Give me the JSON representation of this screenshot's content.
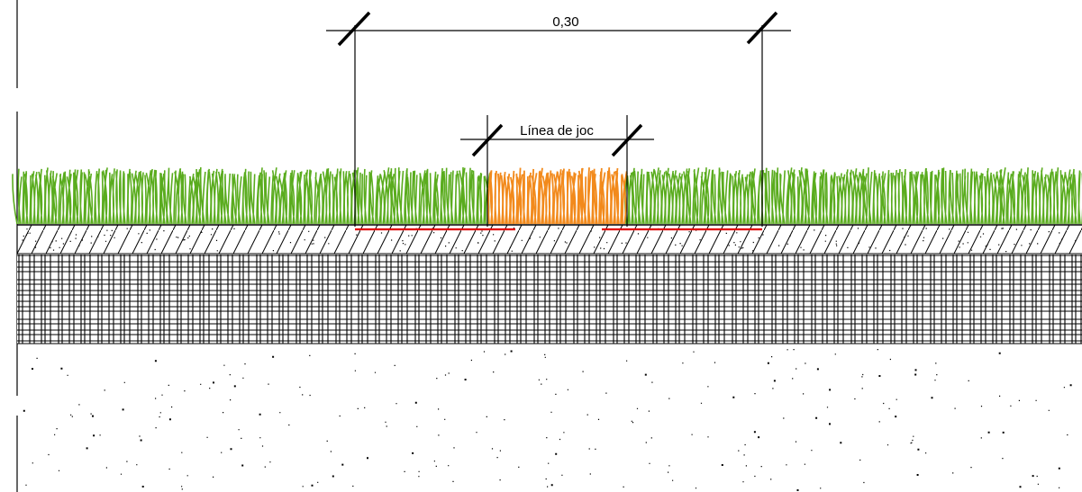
{
  "dimensions": {
    "overall_label": "0,30",
    "play_line_label": "Línea de joc"
  },
  "colors": {
    "grass": "#5aac1e",
    "play_line": "#f28a1c",
    "seam_tape": "#e00000",
    "line": "#000000"
  },
  "layers": [
    {
      "name": "artificial-turf"
    },
    {
      "name": "hatched-base"
    },
    {
      "name": "crosshatched-subbase"
    },
    {
      "name": "dotted-soil"
    }
  ]
}
